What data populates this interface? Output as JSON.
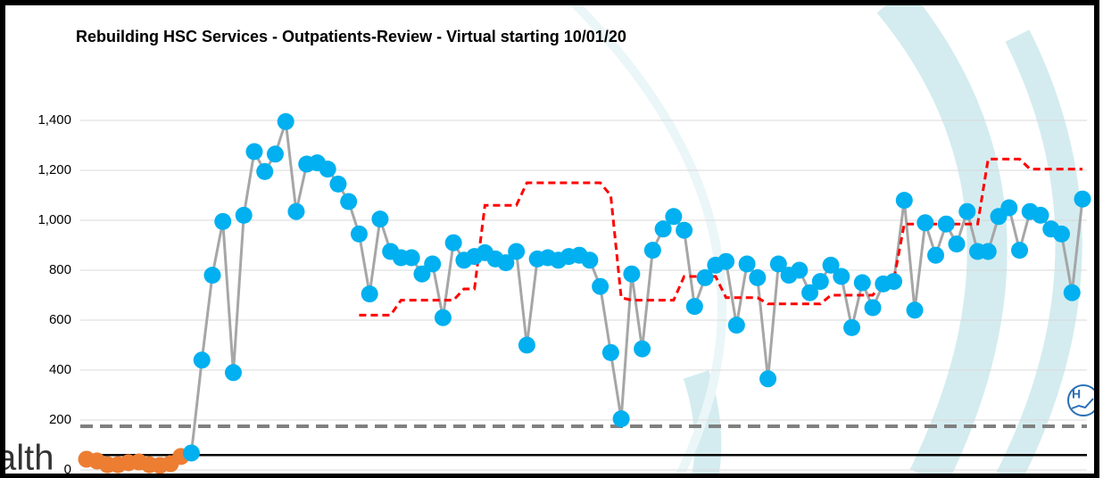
{
  "chart_data": {
    "type": "line",
    "title": "Rebuilding HSC Services - Outpatients-Review - Virtual starting 10/01/20",
    "watermark_text": "alth",
    "icon_text": "H",
    "ylim": [
      0,
      1500
    ],
    "yticks": [
      0,
      200,
      400,
      600,
      800,
      {
        "value": 1000,
        "label": "1,000"
      },
      {
        "value": 1200,
        "label": "1,200"
      },
      {
        "value": 1400,
        "label": "1,400"
      }
    ],
    "grid": true,
    "reference_lines": [
      {
        "value": 175,
        "color": "#808080",
        "dashed": true
      },
      {
        "value": 60,
        "color": "#000000",
        "dashed": false
      }
    ],
    "series": [
      {
        "color": "#ed7d31",
        "marker": true,
        "line_color": "#a6a6a6",
        "values": [
          43,
          36,
          21,
          21,
          29,
          32,
          21,
          18,
          25,
          54,
          null,
          null,
          null,
          null,
          null,
          null,
          null,
          null,
          null,
          null,
          null,
          null,
          null,
          null,
          null,
          null,
          null,
          null,
          null,
          null,
          null,
          null,
          null,
          null,
          null,
          null,
          null,
          null,
          null,
          null,
          null,
          null,
          null,
          null,
          null,
          null,
          null,
          null,
          null,
          null,
          null,
          null,
          null,
          null,
          null,
          null,
          null,
          null,
          null,
          null,
          null,
          null,
          null,
          null,
          null,
          null,
          null,
          null,
          null,
          null,
          null,
          null,
          null,
          null,
          null,
          null,
          null,
          null,
          null,
          null,
          null,
          null,
          null,
          null,
          null,
          null,
          null,
          null,
          null,
          null,
          null,
          null,
          null,
          null,
          null,
          null
        ]
      },
      {
        "color": "#00b0f0",
        "marker": true,
        "line_color": "#a6a6a6",
        "values": [
          null,
          null,
          null,
          null,
          null,
          null,
          null,
          null,
          null,
          null,
          68,
          440,
          780,
          995,
          390,
          1020,
          1275,
          1195,
          1265,
          1395,
          1035,
          1225,
          1230,
          1205,
          1145,
          1075,
          945,
          705,
          1005,
          875,
          850,
          850,
          785,
          825,
          610,
          910,
          840,
          855,
          870,
          845,
          830,
          875,
          500,
          845,
          850,
          840,
          855,
          860,
          840,
          735,
          470,
          205,
          785,
          485,
          880,
          965,
          1015,
          960,
          655,
          770,
          820,
          835,
          580,
          825,
          770,
          365,
          825,
          780,
          800,
          710,
          755,
          820,
          775,
          570,
          750,
          650,
          745,
          755,
          1080,
          640,
          990,
          860,
          985,
          905,
          1035,
          875,
          875,
          1015,
          1050,
          880,
          1035,
          1020,
          965,
          945,
          710,
          1085
        ]
      },
      {
        "color": "#ff0000",
        "marker": false,
        "dashed": true,
        "values": [
          null,
          null,
          null,
          null,
          null,
          null,
          null,
          null,
          null,
          null,
          null,
          null,
          null,
          null,
          null,
          null,
          null,
          null,
          null,
          null,
          null,
          null,
          null,
          null,
          null,
          null,
          620,
          620,
          620,
          620,
          680,
          680,
          680,
          680,
          680,
          680,
          725,
          725,
          1060,
          1060,
          1060,
          1060,
          1150,
          1150,
          1150,
          1150,
          1150,
          1150,
          1150,
          1150,
          1100,
          690,
          680,
          680,
          680,
          680,
          680,
          775,
          775,
          775,
          775,
          690,
          690,
          690,
          690,
          665,
          665,
          665,
          665,
          665,
          665,
          700,
          700,
          700,
          700,
          700,
          760,
          760,
          985,
          985,
          985,
          985,
          985,
          985,
          985,
          985,
          1245,
          1245,
          1245,
          1245,
          1205,
          1205,
          1205,
          1205,
          1205,
          1205
        ]
      }
    ]
  }
}
